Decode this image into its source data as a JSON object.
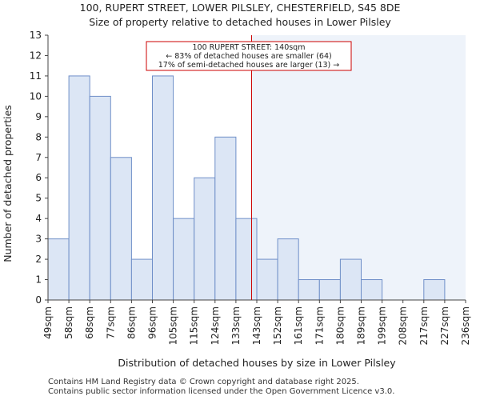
{
  "chart_data": {
    "type": "histogram",
    "title": "100, RUPERT STREET, LOWER PILSLEY, CHESTERFIELD, S45 8DE",
    "subtitle": "Size of property relative to detached houses in Lower Pilsley",
    "xlabel": "Distribution of detached houses by size in Lower Pilsley",
    "ylabel": "Number of detached properties",
    "categories": [
      "49sqm",
      "58sqm",
      "68sqm",
      "77sqm",
      "86sqm",
      "96sqm",
      "105sqm",
      "115sqm",
      "124sqm",
      "133sqm",
      "143sqm",
      "152sqm",
      "161sqm",
      "171sqm",
      "180sqm",
      "189sqm",
      "199sqm",
      "208sqm",
      "217sqm",
      "227sqm",
      "236sqm"
    ],
    "values": [
      3,
      11,
      10,
      7,
      2,
      11,
      4,
      6,
      8,
      4,
      2,
      3,
      1,
      1,
      2,
      1,
      0,
      0,
      1,
      0
    ],
    "ylim": [
      0,
      13
    ],
    "yticks": [
      0,
      1,
      2,
      3,
      4,
      5,
      6,
      7,
      8,
      9,
      10,
      11,
      12,
      13
    ],
    "marker": {
      "value_sqm": 140,
      "bin_position": 9.75
    },
    "annotation": [
      "100 RUPERT STREET: 140sqm",
      "← 83% of detached houses are smaller (64)",
      "17% of semi-detached houses are larger (13) →"
    ],
    "colors": {
      "bar_fill": "#dce6f5",
      "bar_stroke": "#6f8fc8",
      "marker": "#cc0000",
      "shade": "#eef3fa"
    }
  },
  "footer": {
    "line1": "Contains HM Land Registry data © Crown copyright and database right 2025.",
    "line2": "Contains public sector information licensed under the Open Government Licence v3.0."
  }
}
